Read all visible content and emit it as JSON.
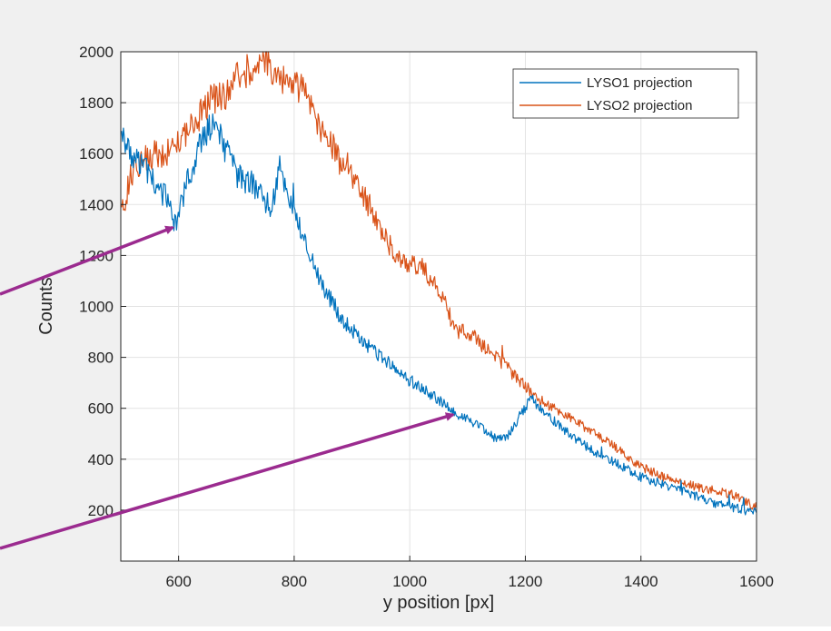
{
  "chart_data": {
    "type": "line",
    "xlabel": "y position [px]",
    "ylabel": "Counts",
    "xlim": [
      500,
      1600
    ],
    "ylim": [
      0,
      2000
    ],
    "xticks": [
      600,
      800,
      1000,
      1200,
      1400,
      1600
    ],
    "yticks": [
      200,
      400,
      600,
      800,
      1000,
      1200,
      1400,
      1600,
      1800,
      2000
    ],
    "grid": true,
    "legend_position": "top-right",
    "series": [
      {
        "name": "LYSO1 projection",
        "color": "#0072BD",
        "x": [
          500,
          520,
          540,
          560,
          580,
          595,
          610,
          630,
          650,
          665,
          680,
          700,
          720,
          740,
          760,
          775,
          790,
          800,
          820,
          850,
          880,
          920,
          960,
          1000,
          1040,
          1080,
          1120,
          1150,
          1170,
          1190,
          1210,
          1240,
          1280,
          1320,
          1360,
          1400,
          1440,
          1480,
          1520,
          1560,
          1600
        ],
        "values": [
          1680,
          1600,
          1540,
          1490,
          1420,
          1310,
          1450,
          1590,
          1700,
          1720,
          1620,
          1520,
          1490,
          1460,
          1380,
          1550,
          1440,
          1380,
          1250,
          1080,
          960,
          860,
          780,
          710,
          650,
          580,
          530,
          480,
          490,
          570,
          640,
          570,
          490,
          430,
          380,
          330,
          300,
          270,
          230,
          210,
          190
        ]
      },
      {
        "name": "LYSO2 projection",
        "color": "#D95319",
        "x": [
          500,
          520,
          540,
          560,
          580,
          600,
          620,
          640,
          660,
          680,
          700,
          720,
          740,
          760,
          780,
          800,
          820,
          840,
          860,
          880,
          900,
          920,
          940,
          960,
          980,
          1000,
          1020,
          1040,
          1060,
          1080,
          1100,
          1120,
          1140,
          1160,
          1180,
          1200,
          1220,
          1250,
          1280,
          1320,
          1360,
          1400,
          1440,
          1480,
          1520,
          1560,
          1600
        ],
        "values": [
          1360,
          1530,
          1580,
          1600,
          1600,
          1660,
          1700,
          1760,
          1820,
          1830,
          1900,
          1930,
          1960,
          1940,
          1880,
          1870,
          1840,
          1720,
          1660,
          1560,
          1520,
          1430,
          1360,
          1260,
          1190,
          1170,
          1160,
          1100,
          1020,
          900,
          900,
          860,
          820,
          780,
          730,
          690,
          640,
          600,
          560,
          500,
          440,
          370,
          330,
          300,
          280,
          260,
          210
        ]
      }
    ],
    "annotations": [
      {
        "type": "arrow",
        "color": "#9B2B8F",
        "from": "outside-left",
        "to_x": 590,
        "to_y": 1310
      },
      {
        "type": "arrow",
        "color": "#9B2B8F",
        "from": "outside-left-bottom",
        "to_x": 1075,
        "to_y": 575
      }
    ]
  }
}
